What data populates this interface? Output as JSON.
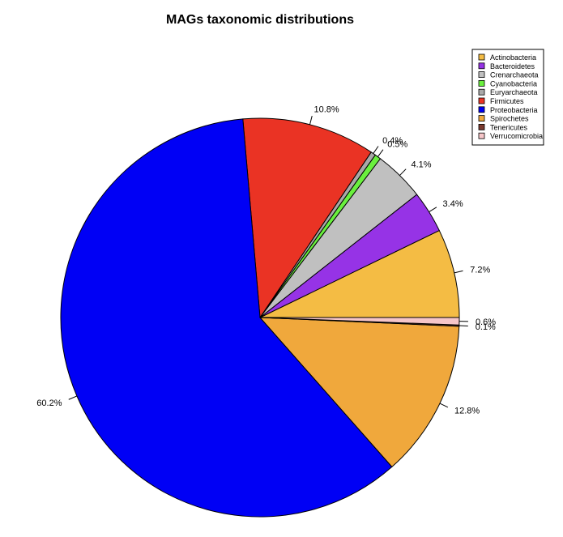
{
  "chart_data": {
    "type": "pie",
    "title": "MAGs taxonomic distributions",
    "legend_position": "top-right",
    "slices": [
      {
        "name": "Actinobacteria",
        "value": 7.2,
        "label": "7.2%",
        "color": "#F4BC44"
      },
      {
        "name": "Bacteroidetes",
        "value": 3.4,
        "label": "3.4%",
        "color": "#9633E6"
      },
      {
        "name": "Crenarchaeota",
        "value": 4.1,
        "label": "4.1%",
        "color": "#C0C0C0"
      },
      {
        "name": "Cyanobacteria",
        "value": 0.5,
        "label": "0.5%",
        "color": "#6AF03E"
      },
      {
        "name": "Euryarchaeota",
        "value": 0.4,
        "label": "0.4%",
        "color": "#A9A9A9"
      },
      {
        "name": "Firmicutes",
        "value": 10.8,
        "label": "10.8%",
        "color": "#EA3324"
      },
      {
        "name": "Proteobacteria",
        "value": 60.2,
        "label": "60.2%",
        "color": "#0000F5"
      },
      {
        "name": "Spirochetes",
        "value": 12.8,
        "label": "12.8%",
        "color": "#F0A83C"
      },
      {
        "name": "Tenericutes",
        "value": 0.1,
        "label": "0.1%",
        "color": "#7B3A2E"
      },
      {
        "name": "Verrucomicrobia",
        "value": 0.6,
        "label": "0.6%",
        "color": "#F6C6C9"
      }
    ]
  }
}
